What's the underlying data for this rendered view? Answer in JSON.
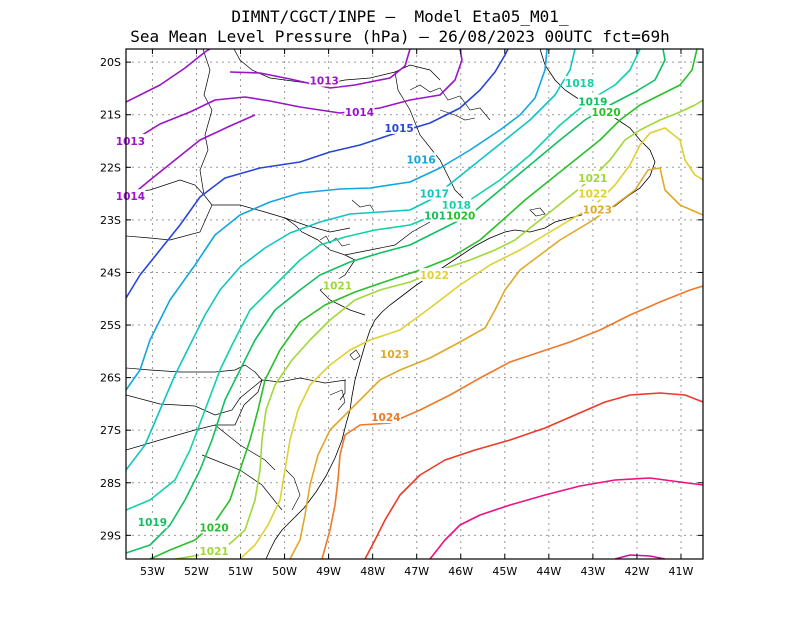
{
  "title_line1": "DIMNT/CGCT/INPE –  Model Eta05_M01_",
  "title_line2": "Sea Mean Level Pressure (hPa) – 26/08/2023 00UTC fct=69h",
  "lat_ticks": [
    "20S",
    "21S",
    "22S",
    "23S",
    "24S",
    "25S",
    "26S",
    "27S",
    "28S",
    "29S"
  ],
  "lon_ticks": [
    "53W",
    "52W",
    "51W",
    "50W",
    "49W",
    "48W",
    "47W",
    "46W",
    "45W",
    "44W",
    "43W",
    "42W",
    "41W"
  ],
  "isobars": [
    {
      "value": 1013,
      "color": "#9a14c8",
      "labels": [
        {
          "text": "1013",
          "lon": -49.1,
          "lat": -20.35
        },
        {
          "text": "1013",
          "lon": -53.5,
          "lat": -21.5
        }
      ]
    },
    {
      "value": 1014,
      "color": "#9a14c8",
      "labels": [
        {
          "text": "1014",
          "lon": -48.3,
          "lat": -20.95
        },
        {
          "text": "1014",
          "lon": -53.5,
          "lat": -22.55
        }
      ]
    },
    {
      "value": 1015,
      "color": "#2846d8",
      "labels": [
        {
          "text": "1015",
          "lon": -47.4,
          "lat": -21.25
        }
      ]
    },
    {
      "value": 1016,
      "color": "#10a6e0",
      "labels": [
        {
          "text": "1016",
          "lon": -46.9,
          "lat": -21.85
        }
      ]
    },
    {
      "value": 1017,
      "color": "#10c4c4",
      "labels": [
        {
          "text": "1017",
          "lon": -46.6,
          "lat": -22.5
        }
      ]
    },
    {
      "value": 1018,
      "color": "#10d2a8",
      "labels": [
        {
          "text": "1018",
          "lon": -46.1,
          "lat": -22.72
        },
        {
          "text": "1018",
          "lon": -43.3,
          "lat": -20.4
        }
      ]
    },
    {
      "value": 1019,
      "color": "#10c060",
      "labels": [
        {
          "text": "1019",
          "lon": -46.5,
          "lat": -22.92
        },
        {
          "text": "1019",
          "lon": -43.0,
          "lat": -20.75
        },
        {
          "text": "1019",
          "lon": -53.0,
          "lat": -28.75
        }
      ]
    },
    {
      "value": 1020,
      "color": "#28c028",
      "labels": [
        {
          "text": "1020",
          "lon": -46.0,
          "lat": -22.92
        },
        {
          "text": "1020",
          "lon": -42.7,
          "lat": -20.95
        },
        {
          "text": "1020",
          "lon": -51.6,
          "lat": -28.85
        }
      ]
    },
    {
      "value": 1021,
      "color": "#a0d838",
      "labels": [
        {
          "text": "1021",
          "lon": -48.8,
          "lat": -24.25
        },
        {
          "text": "1021",
          "lon": -43.0,
          "lat": -22.2
        },
        {
          "text": "1021",
          "lon": -51.6,
          "lat": -29.3
        }
      ]
    },
    {
      "value": 1022,
      "color": "#e0d030",
      "labels": [
        {
          "text": "1022",
          "lon": -46.6,
          "lat": -24.05
        },
        {
          "text": "1022",
          "lon": -43.0,
          "lat": -22.5
        }
      ]
    },
    {
      "value": 1023,
      "color": "#e0a828",
      "labels": [
        {
          "text": "1023",
          "lon": -47.5,
          "lat": -25.55
        },
        {
          "text": "1023",
          "lon": -42.9,
          "lat": -22.8
        }
      ]
    },
    {
      "value": 1024,
      "color": "#f07828",
      "labels": [
        {
          "text": "1024",
          "lon": -47.7,
          "lat": -26.75
        }
      ]
    },
    {
      "value": 1025,
      "color": "#f03828",
      "labels": []
    },
    {
      "value": 1026,
      "color": "#f01080",
      "labels": []
    }
  ],
  "colors": {
    "grid": "#9a9a9a",
    "coast": "#000000",
    "border": "#000000"
  }
}
